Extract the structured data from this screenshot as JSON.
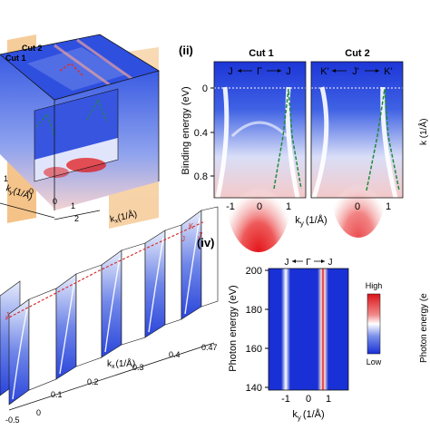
{
  "panel_i": {
    "cut_labels": [
      "Cut 2",
      "Cut 1"
    ],
    "ky_axis_label": "k",
    "ky_axis_sub": "y",
    "ky_axis_unit": "(1/Å)",
    "kx_axis_label": "k",
    "kx_axis_sub": "x",
    "kx_axis_unit": "(1/Å)",
    "ky_ticks": [
      "1",
      "0"
    ],
    "kx_ticks": [
      "0",
      "1",
      "2"
    ]
  },
  "panel_ii": {
    "label": "(ii)",
    "titles": [
      "Cut 1",
      "Cut 2"
    ],
    "cut1_arrow": {
      "left": "J",
      "center": "Γ",
      "right": "J"
    },
    "cut2_arrow": {
      "left": "K'",
      "center": "J'",
      "right": "K'"
    },
    "ylabel": "Binding energy (eV)",
    "yticks": [
      "0",
      "0.4",
      "0.8"
    ],
    "xticks": [
      "-1",
      "0",
      "1",
      "0",
      "1"
    ],
    "xlabel": "k",
    "xlabel_sub": "y",
    "xlabel_unit": "(1/Å)"
  },
  "panel_iii": {
    "kx_ticks": [
      "-0.5",
      "0",
      "0.1",
      "0.2",
      "0.3",
      "0.4",
      "0.47"
    ],
    "kx_label": "k",
    "kx_sub": "x",
    "kx_unit": "(1/Å)",
    "path_labels": [
      "J",
      "J",
      "K",
      "J'"
    ]
  },
  "panel_iv": {
    "label": "(iv)",
    "arrow": {
      "left": "J",
      "center": "Γ",
      "right": "J"
    },
    "ylabel": "Photon energy (eV)",
    "yticks": [
      "200",
      "180",
      "160",
      "140"
    ],
    "xticks": [
      "-1",
      "0",
      "1"
    ],
    "xlabel": "k",
    "xlabel_sub": "y",
    "xlabel_unit": "(1/Å)",
    "colorbar_high": "High",
    "colorbar_low": "Low"
  },
  "panel_right_cropped": {
    "top_label": "k  (1/Å)",
    "bottom_label": "Photon energy (e"
  },
  "colors": {
    "deep_blue": "#1630d8",
    "white": "#ffffff",
    "red": "#e01a1a",
    "dispersion_dash": "#1f8a3a",
    "arrow_red": "#d83030"
  }
}
